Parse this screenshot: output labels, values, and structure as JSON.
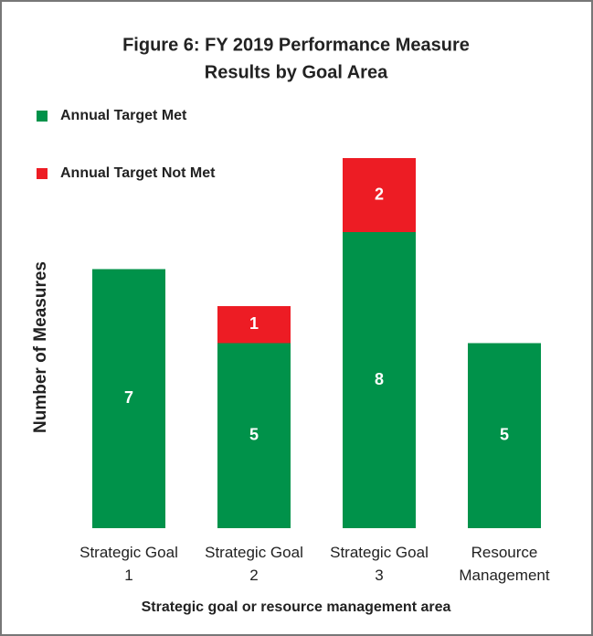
{
  "chart_data": {
    "type": "stacked_bar",
    "title": "Figure 6:  FY 2019 Performance Measure",
    "subtitle": "Results by Goal Area",
    "y_label": "Number of Measures",
    "x_label": "Strategic goal or resource management area",
    "categories": [
      "Strategic Goal 1",
      "Strategic Goal 2",
      "Strategic Goal 3",
      "Resource Management"
    ],
    "series": [
      {
        "name": "Annual Target Met",
        "color": "#00924a",
        "values": [
          7,
          5,
          8,
          5
        ]
      },
      {
        "name": "Annual Target Not Met",
        "color": "#ed1c24",
        "values": [
          null,
          1,
          2,
          null
        ]
      }
    ],
    "ylim": [
      0,
      10
    ]
  }
}
